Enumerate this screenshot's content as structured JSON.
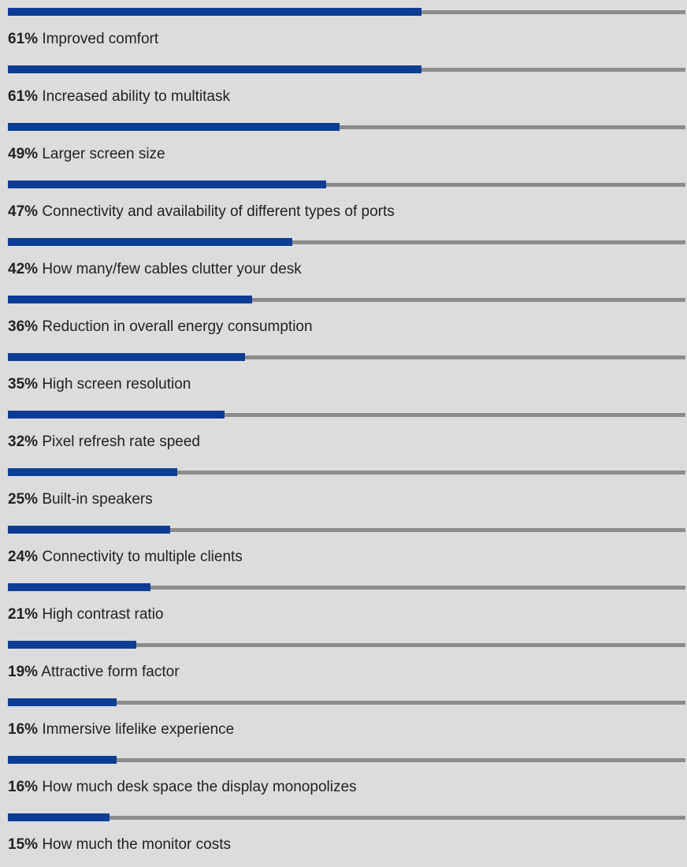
{
  "chart_data": {
    "type": "bar",
    "orientation": "horizontal",
    "xlim": [
      0,
      100
    ],
    "grid": false,
    "bar_color": "#0b3d94",
    "track_color": "#8c8c8c",
    "background_color": "#dcdcdc",
    "items": [
      {
        "value": 61,
        "value_label": "61%",
        "label": "Improved comfort"
      },
      {
        "value": 61,
        "value_label": "61%",
        "label": "Increased ability to multitask"
      },
      {
        "value": 49,
        "value_label": "49%",
        "label": "Larger screen size"
      },
      {
        "value": 47,
        "value_label": "47%",
        "label": "Connectivity and availability of different types of ports"
      },
      {
        "value": 42,
        "value_label": "42%",
        "label": "How many/few cables clutter your desk"
      },
      {
        "value": 36,
        "value_label": "36%",
        "label": "Reduction in overall energy consumption"
      },
      {
        "value": 35,
        "value_label": "35%",
        "label": "High screen resolution"
      },
      {
        "value": 32,
        "value_label": "32%",
        "label": "Pixel refresh rate speed"
      },
      {
        "value": 25,
        "value_label": "25%",
        "label": "Built-in speakers"
      },
      {
        "value": 24,
        "value_label": "24%",
        "label": "Connectivity to multiple clients"
      },
      {
        "value": 21,
        "value_label": "21%",
        "label": "High contrast ratio"
      },
      {
        "value": 19,
        "value_label": "19%",
        "label": "Attractive form factor"
      },
      {
        "value": 16,
        "value_label": "16%",
        "label": "Immersive lifelike experience"
      },
      {
        "value": 16,
        "value_label": "16%",
        "label": "How much desk space the display monopolizes"
      },
      {
        "value": 15,
        "value_label": "15%",
        "label": "How much the monitor costs"
      }
    ]
  }
}
